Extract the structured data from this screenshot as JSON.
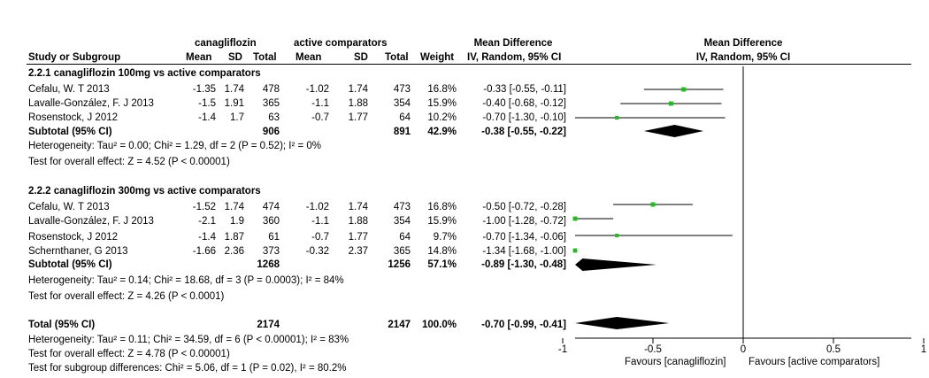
{
  "header": {
    "group1": "canagliflozin",
    "group2": "active comparators",
    "md_label": "Mean Difference",
    "md_sublabel": "IV, Random, 95% CI",
    "plot_label": "Mean Difference",
    "plot_sublabel": "IV, Random, 95% CI",
    "cols": {
      "study": "Study or Subgroup",
      "mean1": "Mean",
      "sd1": "SD",
      "total1": "Total",
      "mean2": "Mean",
      "sd2": "SD",
      "total2": "Total",
      "weight": "Weight"
    }
  },
  "subgroups": [
    {
      "title": "2.2.1 canagliflozin 100mg vs active comparators",
      "studies": [
        {
          "name": "Cefalu, W. T 2013",
          "mean1": "-1.35",
          "sd1": "1.74",
          "total1": "478",
          "mean2": "-1.02",
          "sd2": "1.74",
          "total2": "473",
          "weight": "16.8%",
          "ci": "-0.33 [-0.55, -0.11]"
        },
        {
          "name": "Lavalle-González, F. J 2013",
          "mean1": "-1.5",
          "sd1": "1.91",
          "total1": "365",
          "mean2": "-1.1",
          "sd2": "1.88",
          "total2": "354",
          "weight": "15.9%",
          "ci": "-0.40 [-0.68, -0.12]"
        },
        {
          "name": "Rosenstock, J 2012",
          "mean1": "-1.4",
          "sd1": "1.7",
          "total1": "63",
          "mean2": "-0.7",
          "sd2": "1.77",
          "total2": "64",
          "weight": "10.2%",
          "ci": "-0.70 [-1.30, -0.10]"
        }
      ],
      "subtotal": {
        "label": "Subtotal (95% CI)",
        "total1": "906",
        "total2": "891",
        "weight": "42.9%",
        "ci": "-0.38 [-0.55, -0.22]"
      },
      "heterogeneity": "Heterogeneity: Tau² = 0.00; Chi² = 1.29, df = 2 (P = 0.52); I² = 0%",
      "overall": "Test for overall effect: Z = 4.52 (P < 0.00001)"
    },
    {
      "title": "2.2.2 canagliflozin 300mg vs active comparators",
      "studies": [
        {
          "name": "Cefalu, W. T 2013",
          "mean1": "-1.52",
          "sd1": "1.74",
          "total1": "474",
          "mean2": "-1.02",
          "sd2": "1.74",
          "total2": "473",
          "weight": "16.8%",
          "ci": "-0.50 [-0.72, -0.28]"
        },
        {
          "name": "Lavalle-González, F. J 2013",
          "mean1": "-2.1",
          "sd1": "1.9",
          "total1": "360",
          "mean2": "-1.1",
          "sd2": "1.88",
          "total2": "354",
          "weight": "15.9%",
          "ci": "-1.00 [-1.28, -0.72]"
        },
        {
          "name": "Rosenstock, J 2012",
          "mean1": "-1.4",
          "sd1": "1.87",
          "total1": "61",
          "mean2": "-0.7",
          "sd2": "1.77",
          "total2": "64",
          "weight": "9.7%",
          "ci": "-0.70 [-1.34, -0.06]"
        },
        {
          "name": "Schernthaner, G 2013",
          "mean1": "-1.66",
          "sd1": "2.36",
          "total1": "373",
          "mean2": "-0.32",
          "sd2": "2.37",
          "total2": "365",
          "weight": "14.8%",
          "ci": "-1.34 [-1.68, -1.00]"
        }
      ],
      "subtotal": {
        "label": "Subtotal (95% CI)",
        "total1": "1268",
        "total2": "1256",
        "weight": "57.1%",
        "ci": "-0.89 [-1.30, -0.48]"
      },
      "heterogeneity": "Heterogeneity: Tau² = 0.14; Chi² = 18.68, df = 3 (P = 0.0003); I² = 84%",
      "overall": "Test for overall effect: Z = 4.26 (P < 0.0001)"
    }
  ],
  "total": {
    "label": "Total (95% CI)",
    "total1": "2174",
    "total2": "2147",
    "weight": "100.0%",
    "ci": "-0.70 [-0.99, -0.41]"
  },
  "footer": {
    "heterogeneity": "Heterogeneity: Tau² = 0.11; Chi² = 34.59, df = 6 (P < 0.00001); I² = 83%",
    "overall": "Test for overall effect: Z = 4.78 (P < 0.00001)",
    "subgroup": "Test for subgroup differences: Chi² = 5.06, df = 1 (P = 0.02), I² = 80.2%"
  },
  "axis_labels": {
    "left": "Favours [canagliflozin]",
    "right": "Favours [active comparators]"
  },
  "colors": {
    "point": "#22bb22",
    "diamond": "#000000",
    "line": "#000000"
  },
  "chart_data": {
    "type": "forest",
    "xlim": [
      -1,
      1
    ],
    "ticks": [
      -1,
      -0.5,
      0,
      0.5,
      1
    ],
    "tick_labels": [
      "-1",
      "-0.5",
      "0",
      "0.5",
      "1"
    ],
    "studies": [
      {
        "label": "Cefalu, W. T 2013 (100mg)",
        "md": -0.33,
        "lo": -0.55,
        "hi": -0.11,
        "weight": 16.8
      },
      {
        "label": "Lavalle-González, F. J 2013 (100mg)",
        "md": -0.4,
        "lo": -0.68,
        "hi": -0.12,
        "weight": 15.9
      },
      {
        "label": "Rosenstock, J 2012 (100mg)",
        "md": -0.7,
        "lo": -1.3,
        "hi": -0.1,
        "weight": 10.2
      },
      {
        "label": "Cefalu, W. T 2013 (300mg)",
        "md": -0.5,
        "lo": -0.72,
        "hi": -0.28,
        "weight": 16.8
      },
      {
        "label": "Lavalle-González, F. J 2013 (300mg)",
        "md": -1.0,
        "lo": -1.28,
        "hi": -0.72,
        "weight": 15.9
      },
      {
        "label": "Rosenstock, J 2012 (300mg)",
        "md": -0.7,
        "lo": -1.34,
        "hi": -0.06,
        "weight": 9.7
      },
      {
        "label": "Schernthaner, G 2013 (300mg)",
        "md": -1.34,
        "lo": -1.68,
        "hi": -1.0,
        "weight": 14.8
      }
    ],
    "summaries": [
      {
        "label": "Subtotal 100mg",
        "md": -0.38,
        "lo": -0.55,
        "hi": -0.22
      },
      {
        "label": "Subtotal 300mg",
        "md": -0.89,
        "lo": -1.3,
        "hi": -0.48
      },
      {
        "label": "Total",
        "md": -0.7,
        "lo": -0.99,
        "hi": -0.41
      }
    ]
  }
}
